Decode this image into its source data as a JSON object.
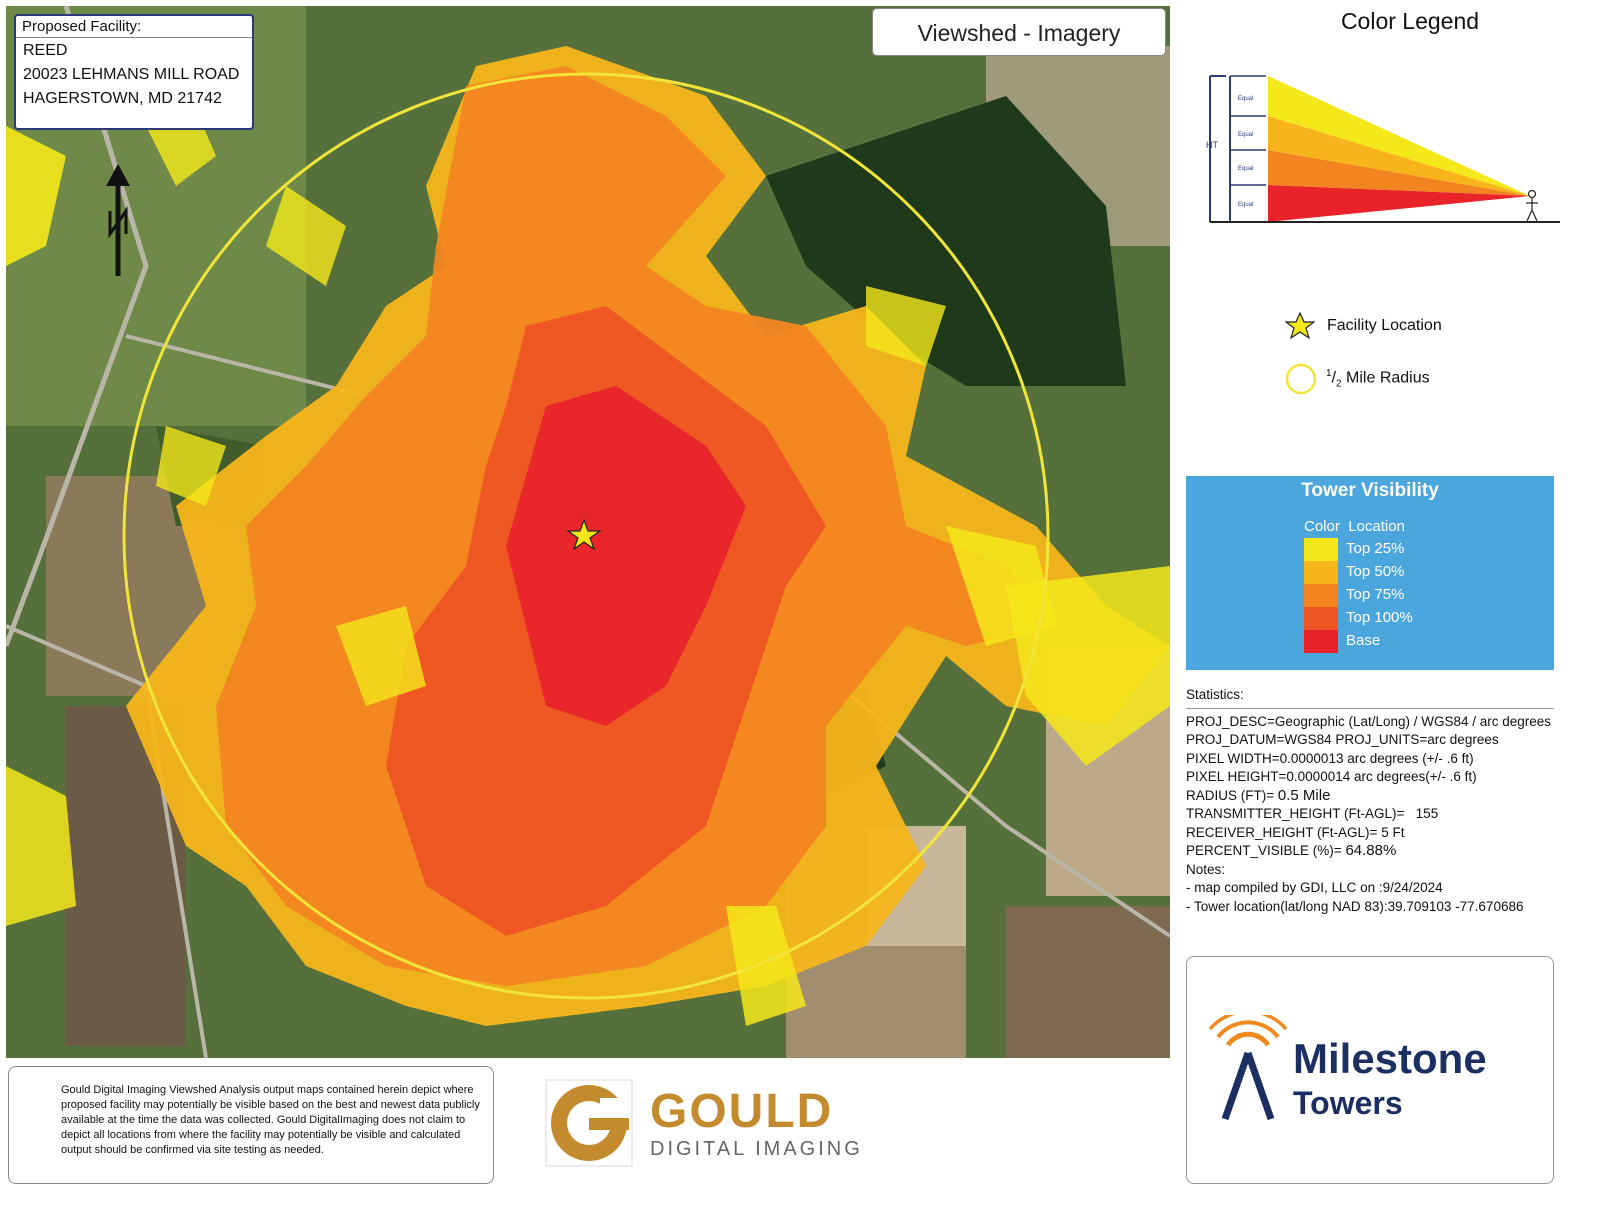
{
  "facility": {
    "heading": "Proposed Facility:",
    "name": "REED",
    "street": "20023 LEHMANS MILL ROAD",
    "city": "HAGERSTOWN, MD 21742"
  },
  "map_title": "Viewshed - Imagery",
  "legend": {
    "title": "Color Legend",
    "diagram_labels": {
      "height": "HT",
      "segment": "Equal"
    },
    "facility_location": "Facility Location",
    "radius_fraction_num": "1",
    "radius_fraction_den": "2",
    "radius_text": "Mile Radius"
  },
  "tower_visibility": {
    "title": "Tower Visibility",
    "col_color": "Color",
    "col_location": "Location",
    "rows": [
      {
        "label": "Top 25%",
        "color": "#f4e71a"
      },
      {
        "label": "Top 50%",
        "color": "#f7b51b"
      },
      {
        "label": "Top 75%",
        "color": "#f38521"
      },
      {
        "label": "Top 100%",
        "color": "#ee5524"
      },
      {
        "label": "Base",
        "color": "#e8242a"
      }
    ]
  },
  "statistics": {
    "heading": "Statistics:",
    "proj_desc": "PROJ_DESC=Geographic (Lat/Long) / WGS84 / arc degrees",
    "proj_datum": "PROJ_DATUM=WGS84 PROJ_UNITS=arc degrees",
    "pixel_width": "PIXEL WIDTH=0.0000013 arc degrees (+/- .6 ft)",
    "pixel_height": "PIXEL HEIGHT=0.0000014 arc degrees(+/- .6 ft)",
    "radius_label": "RADIUS (FT)=",
    "radius_value": "0.5 Mile",
    "tx_label": "TRANSMITTER_HEIGHT (Ft-AGL)=",
    "tx_value": "155",
    "rx_label": "RECEIVER_HEIGHT (Ft-AGL)=",
    "rx_value": "5 Ft",
    "pv_label": "PERCENT_VISIBLE (%)=",
    "pv_value": "64.88%",
    "notes_heading": "Notes:",
    "note1_label": "- map compiled by GDI, LLC on :",
    "note1_value": "9/24/2024",
    "note2_label": "- Tower location(lat/long NAD 83):",
    "note2_value": "39.709103 -77.670686"
  },
  "disclaimer": "Gould Digital Imaging Viewshed Analysis output maps contained herein depict where proposed facility may potentially be visible based on the best and newest data publicly available at the time the data was collected. Gould DigitalImaging does not claim to depict all locations from where the facility may potentially be visible and calculated output should be confirmed via site testing as needed.",
  "gould": {
    "word": "GOULD",
    "sub": "DIGITAL IMAGING"
  },
  "milestone": {
    "word1": "Milestone",
    "word2": "Towers"
  },
  "colors": {
    "yellow": "#f4e71a",
    "light_orange": "#f7b51b",
    "orange": "#f38521",
    "red_orange": "#ee5524",
    "red": "#e8242a",
    "radius_circle": "#f2e53a",
    "brand_blue": "#1c2f63",
    "brand_orange": "#f08a1e"
  }
}
